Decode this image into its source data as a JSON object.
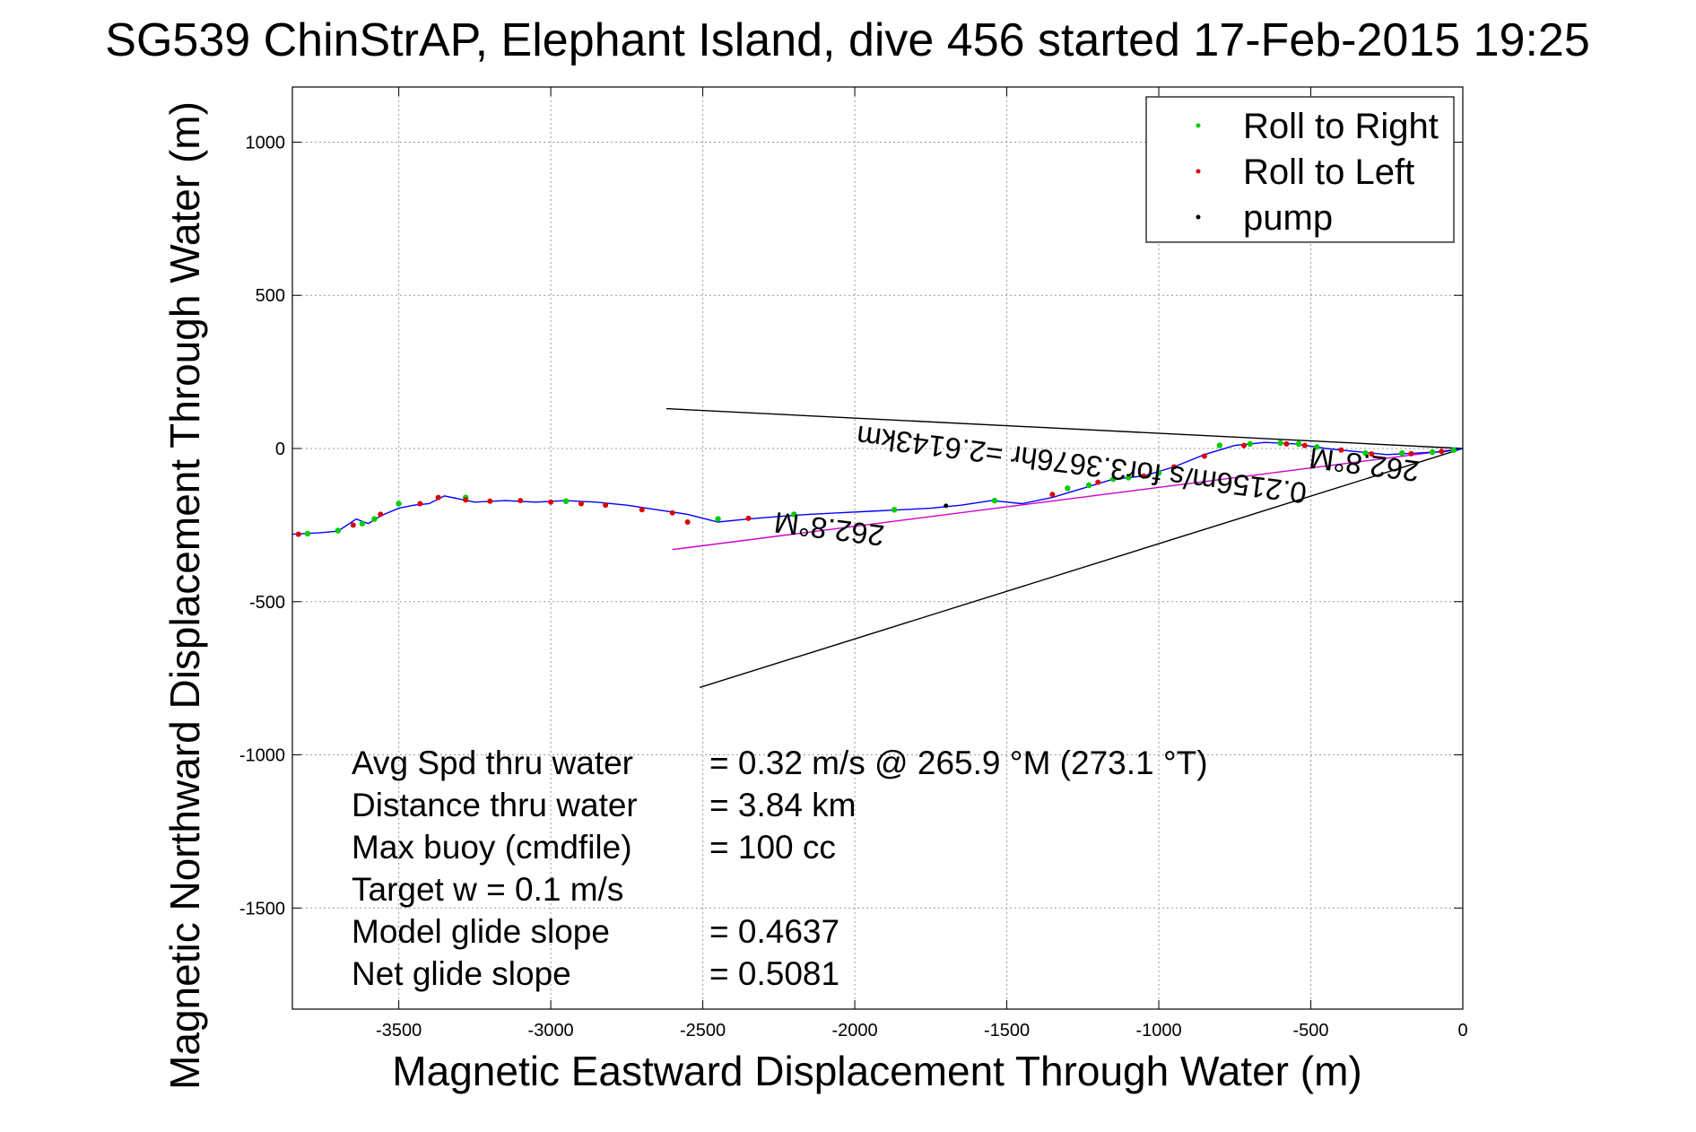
{
  "chart_data": {
    "type": "line",
    "title": "SG539 ChinStrAP, Elephant Island, dive 456 started 17-Feb-2015 19:25",
    "xlabel": "Magnetic Eastward Displacement Through Water (m)",
    "ylabel": "Magnetic Northward Displacement Through Water (m)",
    "xlim": [
      -3850,
      0
    ],
    "ylim": [
      -1830,
      1180
    ],
    "xticks": [
      -3500,
      -3000,
      -2500,
      -2000,
      -1500,
      -1000,
      -500,
      0
    ],
    "yticks": [
      -1500,
      -1000,
      -500,
      0,
      500,
      1000
    ],
    "grid": true,
    "legend_position": "top-right",
    "legend": [
      {
        "label": "Roll to Right",
        "color": "#00cc00"
      },
      {
        "label": "Roll to Left",
        "color": "#dd0000"
      },
      {
        "label": "pump",
        "color": "#000000"
      }
    ],
    "track": {
      "color": "#0000ff",
      "x": [
        0,
        -60,
        -150,
        -250,
        -350,
        -450,
        -550,
        -650,
        -750,
        -850,
        -950,
        -1050,
        -1150,
        -1250,
        -1350,
        -1450,
        -1550,
        -1650,
        -1750,
        -1850,
        -1950,
        -2050,
        -2150,
        -2250,
        -2350,
        -2450,
        -2550,
        -2650,
        -2750,
        -2850,
        -2950,
        -3050,
        -3150,
        -3250,
        -3350,
        -3400,
        -3450,
        -3500,
        -3560,
        -3600,
        -3640,
        -3700,
        -3760,
        -3850
      ],
      "y": [
        0,
        -10,
        -15,
        -20,
        -10,
        0,
        15,
        20,
        10,
        -20,
        -60,
        -90,
        -100,
        -130,
        -160,
        -180,
        -170,
        -185,
        -195,
        -200,
        -205,
        -210,
        -215,
        -222,
        -230,
        -240,
        -215,
        -200,
        -185,
        -175,
        -170,
        -175,
        -170,
        -175,
        -155,
        -180,
        -185,
        -195,
        -220,
        -245,
        -230,
        -270,
        -275,
        -280
      ]
    },
    "roll_right_x": [
      -30,
      -100,
      -200,
      -320,
      -480,
      -540,
      -600,
      -700,
      -800,
      -1000,
      -1100,
      -1150,
      -1230,
      -1300,
      -1540,
      -1870,
      -2200,
      -2450,
      -2950,
      -3280,
      -3500,
      -3580,
      -3620,
      -3700,
      -3800
    ],
    "roll_right_y": [
      -5,
      -12,
      -15,
      -15,
      5,
      15,
      18,
      15,
      10,
      -80,
      -95,
      -100,
      -120,
      -130,
      -170,
      -200,
      -215,
      -230,
      -172,
      -160,
      -180,
      -230,
      -245,
      -268,
      -278
    ],
    "roll_left_x": [
      -70,
      -170,
      -300,
      -400,
      -520,
      -580,
      -720,
      -850,
      -950,
      -1050,
      -1200,
      -1350,
      -2350,
      -2550,
      -2600,
      -2700,
      -2820,
      -2900,
      -3000,
      -3100,
      -3200,
      -3280,
      -3370,
      -3430,
      -3560,
      -3650,
      -3830
    ],
    "roll_left_y": [
      -10,
      -17,
      -18,
      -5,
      10,
      15,
      10,
      -25,
      -60,
      -90,
      -110,
      -150,
      -228,
      -240,
      -210,
      -200,
      -185,
      -180,
      -175,
      -170,
      -172,
      -168,
      -160,
      -180,
      -215,
      -250,
      -280
    ],
    "pump_x": [
      -1700
    ],
    "pump_y": [
      -187
    ],
    "lines": [
      {
        "color": "#000000",
        "x": [
          0,
          -2620
        ],
        "y": [
          0,
          130
        ]
      },
      {
        "color": "#000000",
        "x": [
          0,
          -2510
        ],
        "y": [
          0,
          -780
        ]
      },
      {
        "color": "#cc00cc",
        "x": [
          0,
          -2600
        ],
        "y": [
          0,
          -330
        ]
      }
    ],
    "rotated_annotations": [
      {
        "text": "0.2156m/s for3.3676hr =2.6143km",
        "x": -1250,
        "y": -20,
        "angle_deg": 187.3
      },
      {
        "text": "262.8°M",
        "x": -320,
        "y": -20,
        "angle_deg": 187.3
      },
      {
        "text": "262.8°M",
        "x": -2080,
        "y": -230,
        "angle_deg": 187.3
      }
    ],
    "annotations": [
      {
        "label": "Avg Spd thru water",
        "value": "=  0.32 m/s @ 265.9 °M (273.1 °T)"
      },
      {
        "label": "Distance thru water",
        "value": "=  3.84 km"
      },
      {
        "label": "Max buoy (cmdfile)",
        "value": "= 100 cc"
      },
      {
        "label": "Target w    = 0.1 m/s",
        "value": ""
      },
      {
        "label": "Model glide slope",
        "value": "= 0.4637"
      },
      {
        "label": "Net glide slope",
        "value": "= 0.5081"
      }
    ]
  }
}
